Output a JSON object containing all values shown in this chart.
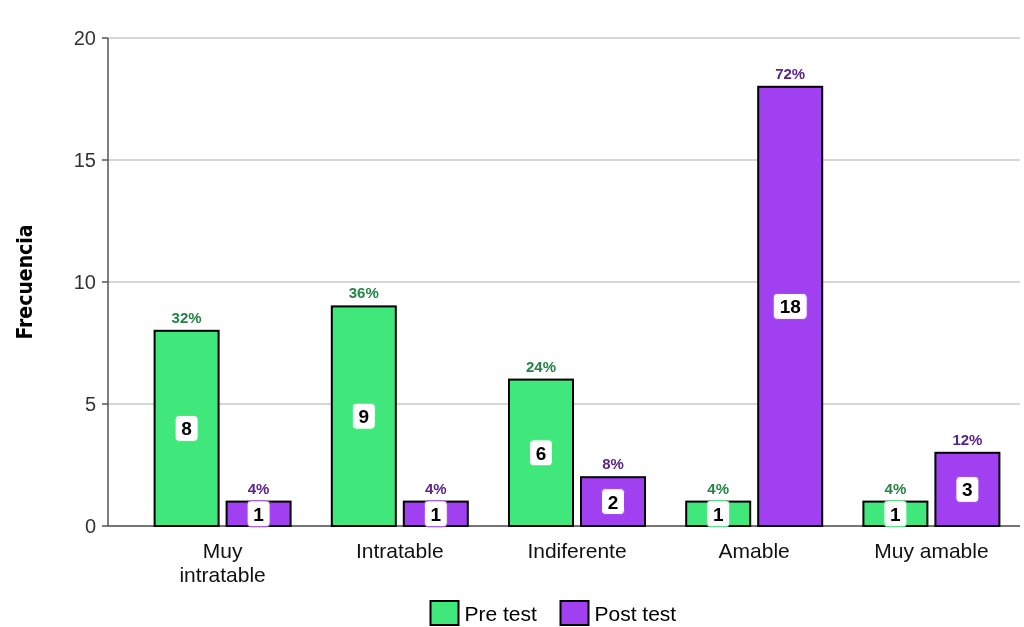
{
  "chart_data": {
    "type": "bar",
    "ylabel": "Frecuencia",
    "categories": [
      "Muy intratable",
      "Intratable",
      "Indiferente",
      "Amable",
      "Muy amable"
    ],
    "series": [
      {
        "name": "Pre test",
        "color": "#40e87c",
        "values": [
          8,
          9,
          6,
          1,
          1
        ]
      },
      {
        "name": "Post test",
        "color": "#a040f0",
        "values": [
          1,
          1,
          2,
          18,
          3
        ]
      }
    ],
    "annotations": [
      {
        "text": "32%",
        "x": "Muy intratable",
        "y": 8
      },
      {
        "text": "36%",
        "x": "Intratable",
        "y": 9
      },
      {
        "text": "24%",
        "x": "Indiferente",
        "y": 6
      },
      {
        "text": "4%",
        "x": "Amable",
        "y": 1
      },
      {
        "text": "4%",
        "x": "Muy amable",
        "y": 1
      },
      {
        "text": "4%",
        "x": "Muy intratable",
        "y": 1
      },
      {
        "text": "4%",
        "x": "Intratable",
        "y": 1
      },
      {
        "text": "8%",
        "x": "Indiferente",
        "y": 2
      },
      {
        "text": "72%",
        "x": "Amable",
        "y": 18
      },
      {
        "text": "12%",
        "x": "Muy amable",
        "y": 3
      }
    ],
    "ylim": [
      0,
      20
    ],
    "yticks": [
      0,
      5,
      10,
      15,
      20
    ],
    "grid": "y",
    "legend": "bottom",
    "data_labels": true
  }
}
